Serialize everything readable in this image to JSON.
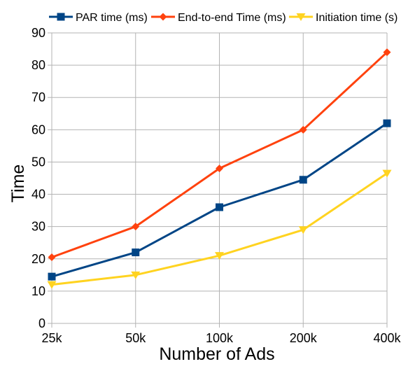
{
  "chart_data": {
    "type": "line",
    "title": "",
    "xlabel": "Number of Ads",
    "ylabel": "Time",
    "categories": [
      "25k",
      "50k",
      "100k",
      "200k",
      "400k"
    ],
    "yticks": [
      "0",
      "10",
      "20",
      "30",
      "40",
      "50",
      "60",
      "70",
      "80",
      "90"
    ],
    "ylim": [
      0,
      90
    ],
    "grid": true,
    "legend_position": "top",
    "series": [
      {
        "name": "PAR time (ms)",
        "values": [
          14.5,
          22,
          36,
          44.5,
          62
        ],
        "color": "#004586",
        "marker": "square"
      },
      {
        "name": "End-to-end Time (ms)",
        "values": [
          20.5,
          30,
          48,
          60,
          84
        ],
        "color": "#ff420e",
        "marker": "diamond"
      },
      {
        "name": "Initiation time (s)",
        "values": [
          12,
          15,
          21,
          29,
          46.5
        ],
        "color": "#ffd320",
        "marker": "triangle-down"
      }
    ]
  }
}
